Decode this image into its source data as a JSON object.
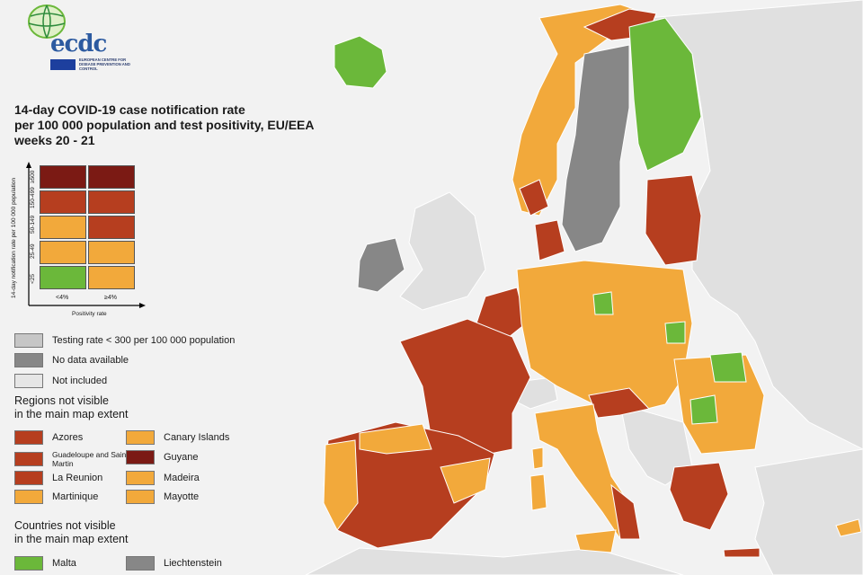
{
  "logo": {
    "name": "ecdc",
    "subtitle": "EUROPEAN CENTRE FOR DISEASE PREVENTION AND CONTROL"
  },
  "title": {
    "line1": "14-day COVID-19 case notification rate",
    "line2": "per 100 000 population and test positivity, EU/EEA",
    "line3": "weeks 20 - 21"
  },
  "colors": {
    "dark_red": "#7b1a14",
    "red": "#b63e1f",
    "orange": "#f2a93b",
    "green": "#6bb83a",
    "light_grey": "#c6c6c6",
    "dark_grey": "#878787",
    "not_included": "#e6e6e6",
    "non_eu_land": "#e0e0e0",
    "sea": "#f2f2f2"
  },
  "matrix": {
    "y_axis_label": "14-day notification rate per 100 000 population",
    "x_axis_label": "Positivity rate",
    "rate_bands": [
      "≥500",
      "150-499",
      "50-149",
      "25-49",
      "<25"
    ],
    "positivity_bands": [
      "<4%",
      "≥4%"
    ],
    "cells": [
      [
        "dark_red",
        "dark_red"
      ],
      [
        "red",
        "red"
      ],
      [
        "orange",
        "red"
      ],
      [
        "orange",
        "orange"
      ],
      [
        "green",
        "orange"
      ]
    ]
  },
  "legend": {
    "testing_rate": "Testing rate < 300 per 100 000 population",
    "no_data": "No data available",
    "not_included": "Not included"
  },
  "regions": {
    "heading1": "Regions not visible",
    "heading2": "in the main map extent",
    "items": [
      {
        "label": "Azores",
        "color": "red"
      },
      {
        "label": "Canary Islands",
        "color": "orange"
      },
      {
        "label": "Guadeloupe and Saint Martin",
        "color": "red"
      },
      {
        "label": "Guyane",
        "color": "dark_red"
      },
      {
        "label": "La Reunion",
        "color": "red"
      },
      {
        "label": "Madeira",
        "color": "orange"
      },
      {
        "label": "Martinique",
        "color": "orange"
      },
      {
        "label": "Mayotte",
        "color": "orange"
      }
    ]
  },
  "countries": {
    "heading1": "Countries not visible",
    "heading2": "in the main map extent",
    "items": [
      {
        "label": "Malta",
        "color": "green"
      },
      {
        "label": "Liechtenstein",
        "color": "dark_grey"
      }
    ]
  }
}
